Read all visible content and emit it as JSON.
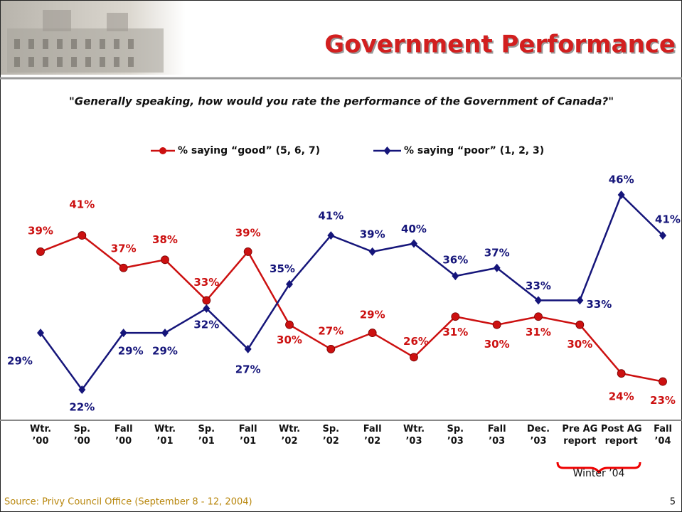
{
  "chart_data": {
    "type": "line",
    "title": "Government Performance",
    "subtitle": "\"Generally speaking, how would you rate the performance of the Government of Canada?\"",
    "categories": [
      "Wtr. ’00",
      "Sp. ’00",
      "Fall ’00",
      "Wtr. ’01",
      "Sp. ’01",
      "Fall ’01",
      "Wtr. ’02",
      "Sp. ’02",
      "Fall ’02",
      "Wtr. ’03",
      "Sp. ’03",
      "Fall ’03",
      "Dec. ’03",
      "Pre AG report",
      "Post AG report",
      "Fall ’04"
    ],
    "series": [
      {
        "name": "% saying “good” (5, 6, 7)",
        "color": "#cc1010",
        "marker": "circle",
        "values": [
          39,
          41,
          37,
          38,
          33,
          39,
          30,
          27,
          29,
          26,
          31,
          30,
          31,
          30,
          24,
          23
        ],
        "value_labels": [
          "39%",
          "41%",
          "37%",
          "38%",
          "33%",
          "39%",
          "30%",
          "27%",
          "29%",
          "26%",
          "31%",
          "30%",
          "31%",
          "30%",
          "24%",
          "23%"
        ]
      },
      {
        "name": "% saying “poor” (1, 2, 3)",
        "color": "#15157a",
        "marker": "diamond",
        "values": [
          29,
          22,
          29,
          29,
          32,
          27,
          35,
          41,
          39,
          40,
          36,
          37,
          33,
          33,
          46,
          41
        ],
        "value_labels": [
          "29%",
          "22%",
          "29%",
          "29%",
          "32%",
          "27%",
          "35%",
          "41%",
          "39%",
          "40%",
          "36%",
          "37%",
          "33%",
          "33%",
          "46%",
          "41%"
        ]
      }
    ],
    "annotation": "Winter ’04",
    "source": "Source: Privy Council Office (September 8 - 12, 2004)",
    "page_number": "5"
  }
}
